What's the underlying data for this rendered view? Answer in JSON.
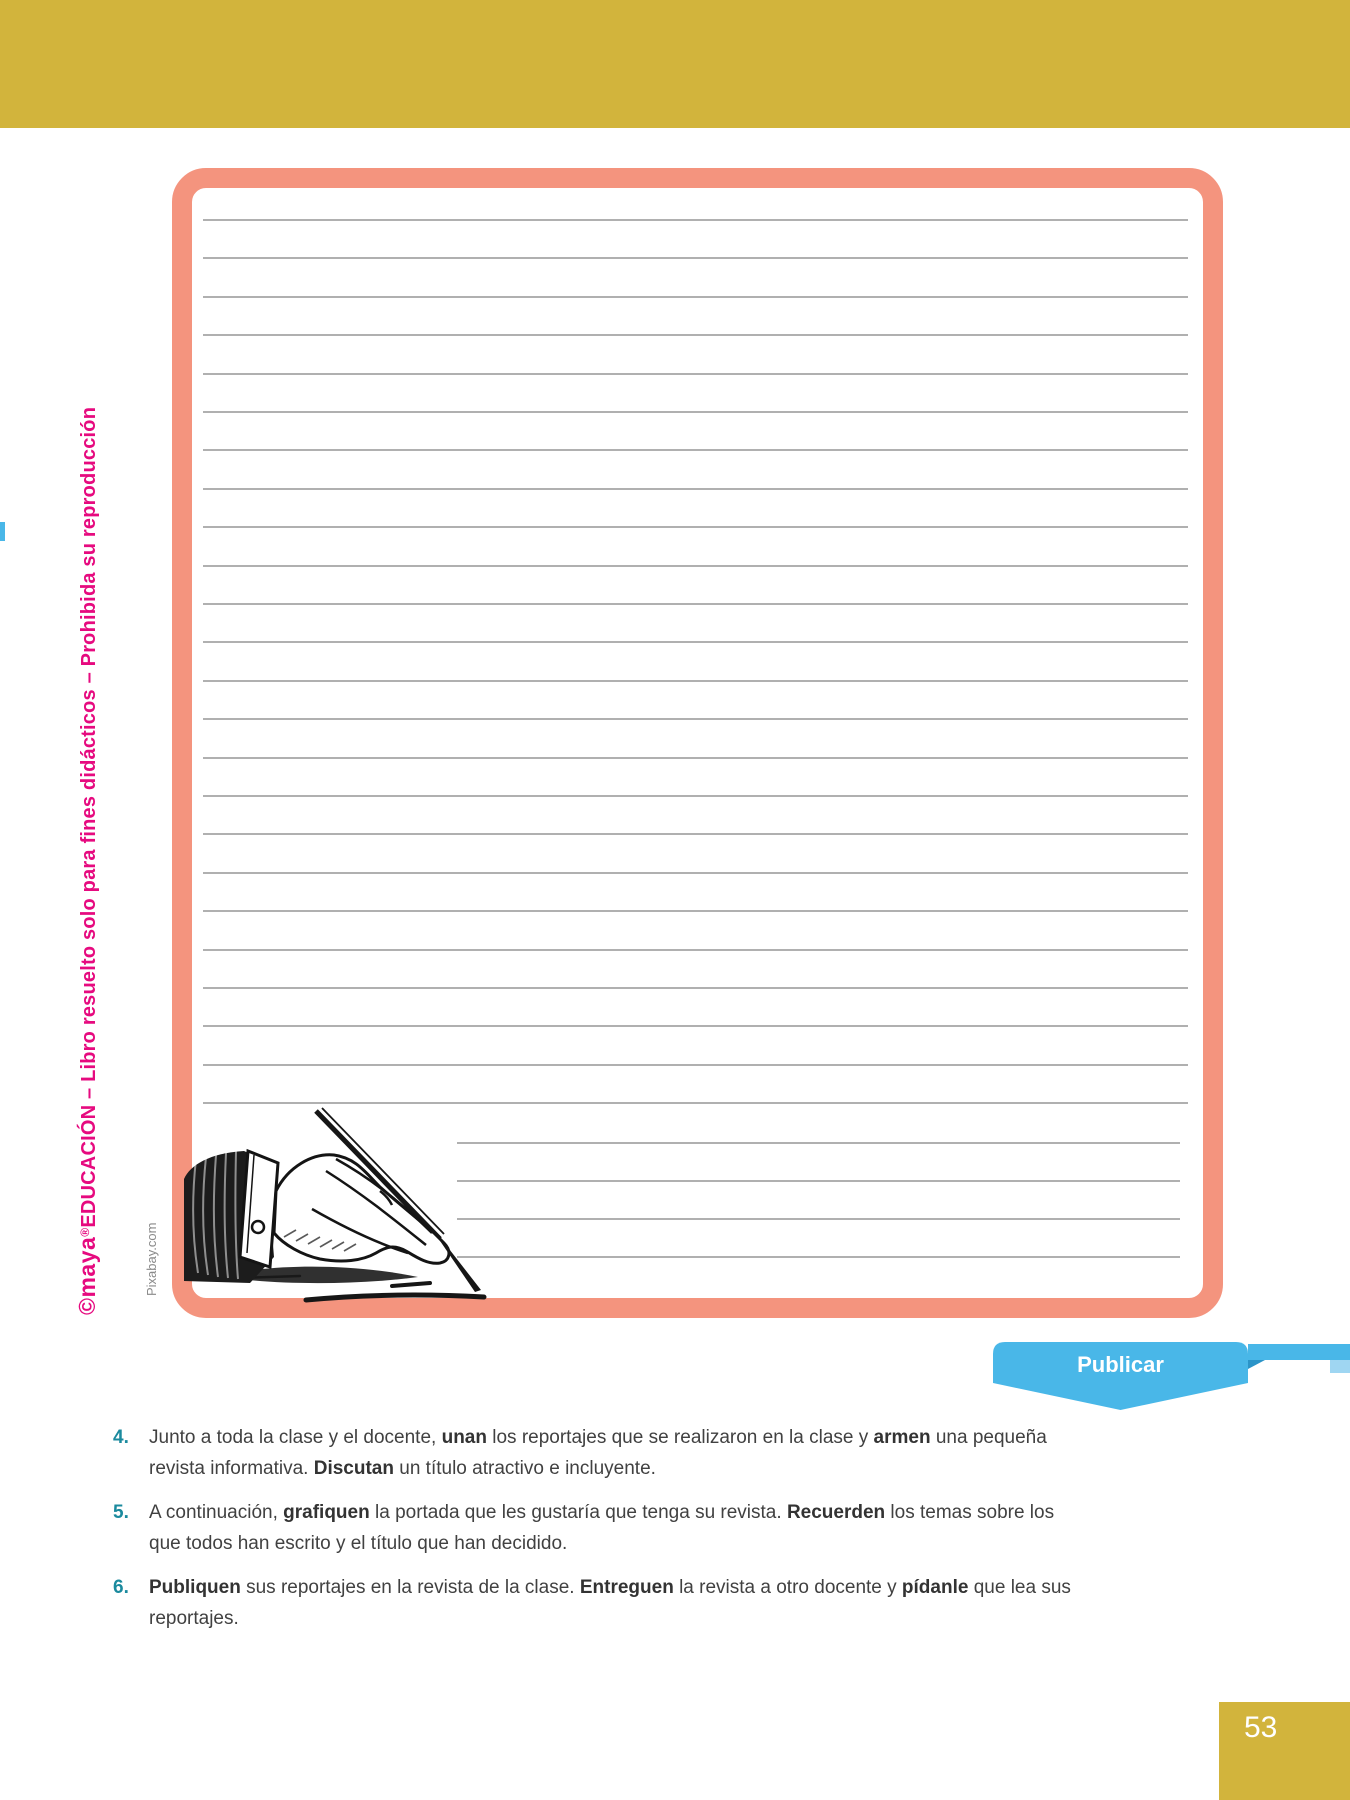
{
  "colors": {
    "header_gold": "#d2b43c",
    "box_salmon": "#f4947e",
    "ribbon_blue": "#49b7e8",
    "brand_magenta": "#e60a7f",
    "number_teal": "#1b8a9e",
    "body_text": "#414141",
    "rule_line": "#b0b0b0"
  },
  "sidebar": {
    "copyright": {
      "logo": "©maya",
      "reg": "®",
      "brand": "EDUCACIÓN",
      "rest": " – Libro resuelto solo para fines didácticos – Prohibida su reproducción"
    },
    "image_credit": "Pixabay.com"
  },
  "worksheet": {
    "ruled_lines": {
      "full_count": 24,
      "short_count": 4
    },
    "illustration": "hand-writing-with-fountain-pen"
  },
  "ribbon": {
    "label": "Publicar"
  },
  "instructions": {
    "items": [
      {
        "number": "4.",
        "segments": [
          {
            "text": "Junto a toda la clase y el docente, "
          },
          {
            "text": "unan"
          },
          {
            "text": " los reportajes que se realizaron en la clase y "
          },
          {
            "text": "armen"
          },
          {
            "text": " una pequeña revista informativa. "
          },
          {
            "text": "Discutan"
          },
          {
            "text": " un título atractivo e incluyente."
          }
        ]
      },
      {
        "number": "5.",
        "segments": [
          {
            "text": "A continuación, "
          },
          {
            "text": "grafiquen"
          },
          {
            "text": " la portada que les gustaría que tenga su revista. "
          },
          {
            "text": "Recuerden"
          },
          {
            "text": " los temas sobre los que todos han escrito y el título que han decidido."
          }
        ]
      },
      {
        "number": "6.",
        "segments": [
          {
            "text": "Publiquen"
          },
          {
            "text": " sus reportajes en la revista de la clase. "
          },
          {
            "text": "Entreguen"
          },
          {
            "text": " la revista a otro docente y "
          },
          {
            "text": "pídanle"
          },
          {
            "text": " que lea sus reportajes."
          }
        ]
      }
    ]
  },
  "footer": {
    "page_number": "53"
  }
}
